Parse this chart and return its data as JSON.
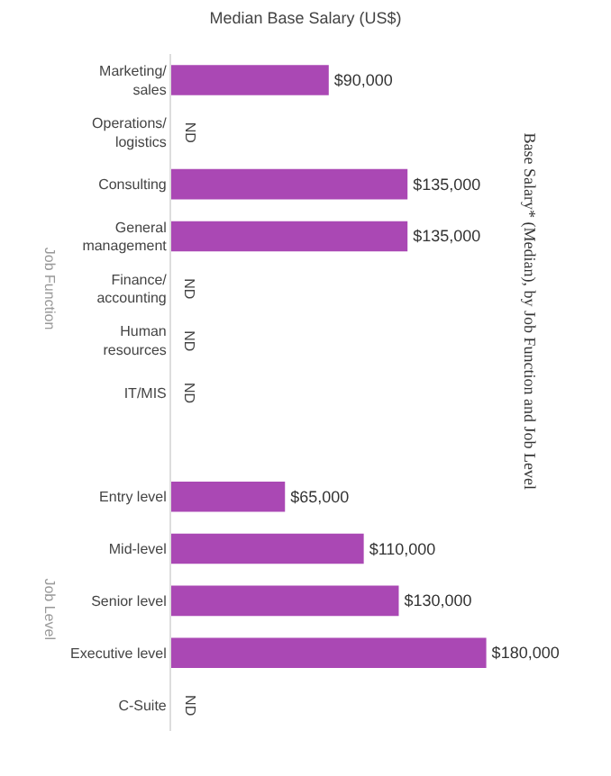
{
  "chart_data": {
    "type": "bar",
    "orientation": "horizontal",
    "title": "Median Base Salary (US$)",
    "categories": [
      "Marketing/\nsales",
      "Operations/\nlogistics",
      "Consulting",
      "General\nmanagement",
      "Finance/\naccounting",
      "Human\nresources",
      "IT/MIS",
      null,
      "Entry level",
      "Mid-level",
      "Senior level",
      "Executive level",
      "C-Suite"
    ],
    "values": [
      90000,
      null,
      135000,
      135000,
      null,
      null,
      null,
      null,
      65000,
      110000,
      130000,
      180000,
      null
    ],
    "value_labels": [
      "$90,000",
      "ND",
      "$135,000",
      "$135,000",
      "ND",
      "ND",
      "ND",
      null,
      "$65,000",
      "$110,000",
      "$130,000",
      "$180,000",
      "ND"
    ],
    "color": "#aa48b4",
    "annotations": [
      "Job Function",
      "Job Level",
      "Base Salary* (Median), by Job Function and Job Level"
    ]
  }
}
